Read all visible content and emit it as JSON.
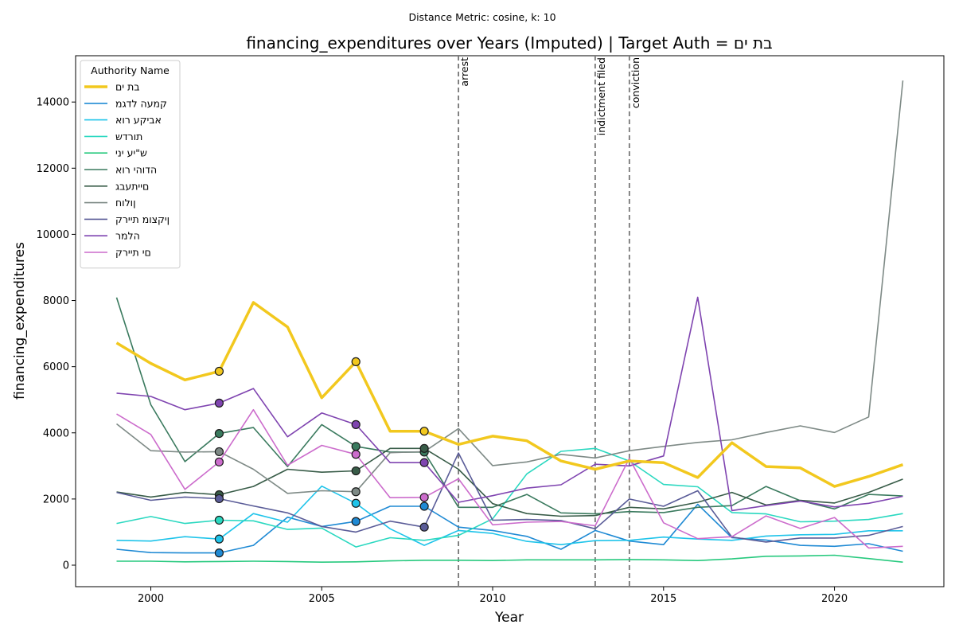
{
  "chart_data": {
    "type": "line",
    "subtitle": "Distance Metric: cosine, k: 10",
    "title": "financing_expenditures over Years (Imputed) | Target Auth = בת ים",
    "xlabel": "Year",
    "ylabel": "financing_expenditures",
    "xlim": [
      1997.8,
      2023.2
    ],
    "ylim": [
      -650,
      15400
    ],
    "xticks": [
      2000,
      2005,
      2010,
      2015,
      2020
    ],
    "yticks": [
      0,
      2000,
      4000,
      6000,
      8000,
      10000,
      12000,
      14000
    ],
    "grid": false,
    "legend": {
      "title": "Authority Name",
      "position": "top-left"
    },
    "events": [
      {
        "label": "arrest",
        "x": 2009
      },
      {
        "label": "indictment filed",
        "x": 2013
      },
      {
        "label": "conviction",
        "x": 2014
      }
    ],
    "x": [
      1999,
      2000,
      2001,
      2002,
      2003,
      2004,
      2005,
      2006,
      2007,
      2008,
      2009,
      2010,
      2011,
      2012,
      2013,
      2014,
      2015,
      2016,
      2017,
      2018,
      2019,
      2020,
      2021,
      2022
    ],
    "series": [
      {
        "name": "בת ים",
        "color": "#f2c81e",
        "width": 3.5,
        "target": true,
        "values": [
          6720,
          6100,
          5600,
          5860,
          7940,
          7200,
          5060,
          6150,
          4050,
          4050,
          3650,
          3900,
          3760,
          3150,
          2900,
          3150,
          3100,
          2650,
          3700,
          2980,
          2940,
          2380,
          2680,
          3040
        ],
        "imputed_years": [
          2002,
          2006,
          2008
        ]
      },
      {
        "name": "קמעה לדגמ",
        "color": "#1f8ad4",
        "width": 1.6,
        "values": [
          480,
          380,
          370,
          370,
          600,
          1450,
          1170,
          1320,
          1780,
          1780,
          1150,
          1050,
          870,
          480,
          1050,
          730,
          620,
          1840,
          830,
          760,
          600,
          570,
          650,
          420
        ],
        "imputed_years": [
          2002,
          2006,
          2008
        ]
      },
      {
        "name": "אביקע רוא",
        "color": "#1fc4ea",
        "width": 1.6,
        "values": [
          750,
          730,
          860,
          790,
          1560,
          1300,
          2390,
          1870,
          1100,
          600,
          1050,
          960,
          720,
          620,
          740,
          750,
          850,
          790,
          750,
          880,
          920,
          930,
          1040,
          1040
        ],
        "imputed_years": [
          2002,
          2006
        ]
      },
      {
        "name": "תורדש",
        "color": "#2ad8c0",
        "width": 1.6,
        "values": [
          1260,
          1470,
          1260,
          1360,
          1340,
          1080,
          1120,
          550,
          830,
          750,
          900,
          1400,
          2760,
          3440,
          3530,
          3150,
          2440,
          2370,
          1590,
          1550,
          1310,
          1330,
          1380,
          1560
        ],
        "imputed_years": [
          2002
        ]
      },
      {
        "name": "ש\"יע יני",
        "color": "#27c97e",
        "width": 1.6,
        "values": [
          120,
          120,
          100,
          110,
          120,
          110,
          90,
          100,
          130,
          150,
          150,
          140,
          160,
          160,
          160,
          170,
          160,
          140,
          190,
          270,
          280,
          300,
          200,
          90
        ],
        "imputed_years": []
      },
      {
        "name": "הדוהי רוא",
        "color": "#3a7a5e",
        "width": 1.6,
        "values": [
          8090,
          4850,
          3130,
          3980,
          4160,
          2980,
          4250,
          3590,
          3420,
          3420,
          1750,
          1750,
          2140,
          1580,
          1550,
          1620,
          1590,
          1750,
          1800,
          2380,
          1950,
          1700,
          2140,
          2090
        ],
        "imputed_years": [
          2002,
          2006,
          2008
        ]
      },
      {
        "name": "םייתעבג",
        "color": "#385c48",
        "width": 1.6,
        "values": [
          2210,
          2060,
          2200,
          2130,
          2380,
          2900,
          2810,
          2850,
          3530,
          3530,
          2900,
          1860,
          1560,
          1480,
          1500,
          1750,
          1700,
          1900,
          2200,
          1820,
          1960,
          1880,
          2200,
          2600
        ],
        "imputed_years": [
          2002,
          2006,
          2008
        ]
      },
      {
        "name": "ןולוח",
        "color": "#7e8a86",
        "width": 1.6,
        "values": [
          4270,
          3460,
          3420,
          3430,
          2900,
          2170,
          2250,
          2220,
          3400,
          3430,
          4130,
          3010,
          3120,
          3350,
          3240,
          3460,
          3590,
          3710,
          3790,
          4010,
          4210,
          4010,
          4480,
          14650
        ],
        "imputed_years": [
          2002,
          2006
        ]
      },
      {
        "name": "ןיקצומ תיירק",
        "color": "#5a5c98",
        "width": 1.6,
        "values": [
          2200,
          1960,
          2060,
          2010,
          1790,
          1580,
          1170,
          1000,
          1330,
          1150,
          3390,
          1360,
          1380,
          1350,
          1100,
          2000,
          1780,
          2250,
          850,
          700,
          820,
          820,
          900,
          1170
        ],
        "imputed_years": [
          2002,
          2008
        ]
      },
      {
        "name": "הלמר",
        "color": "#7f44b0",
        "width": 1.6,
        "values": [
          5200,
          5100,
          4700,
          4900,
          5340,
          3880,
          4600,
          4250,
          3100,
          3100,
          1900,
          2100,
          2330,
          2430,
          3050,
          3000,
          3300,
          8100,
          1650,
          1800,
          1940,
          1760,
          1870,
          2080
        ],
        "imputed_years": [
          2002,
          2006,
          2008
        ]
      },
      {
        "name": "םי תיירק",
        "color": "#cc6ccc",
        "width": 1.6,
        "values": [
          4570,
          3950,
          2290,
          3120,
          4700,
          3020,
          3620,
          3350,
          2040,
          2050,
          2610,
          1220,
          1300,
          1320,
          1190,
          3230,
          1280,
          800,
          860,
          1490,
          1110,
          1440,
          520,
          570
        ],
        "imputed_years": [
          2002,
          2006,
          2008
        ]
      }
    ]
  }
}
